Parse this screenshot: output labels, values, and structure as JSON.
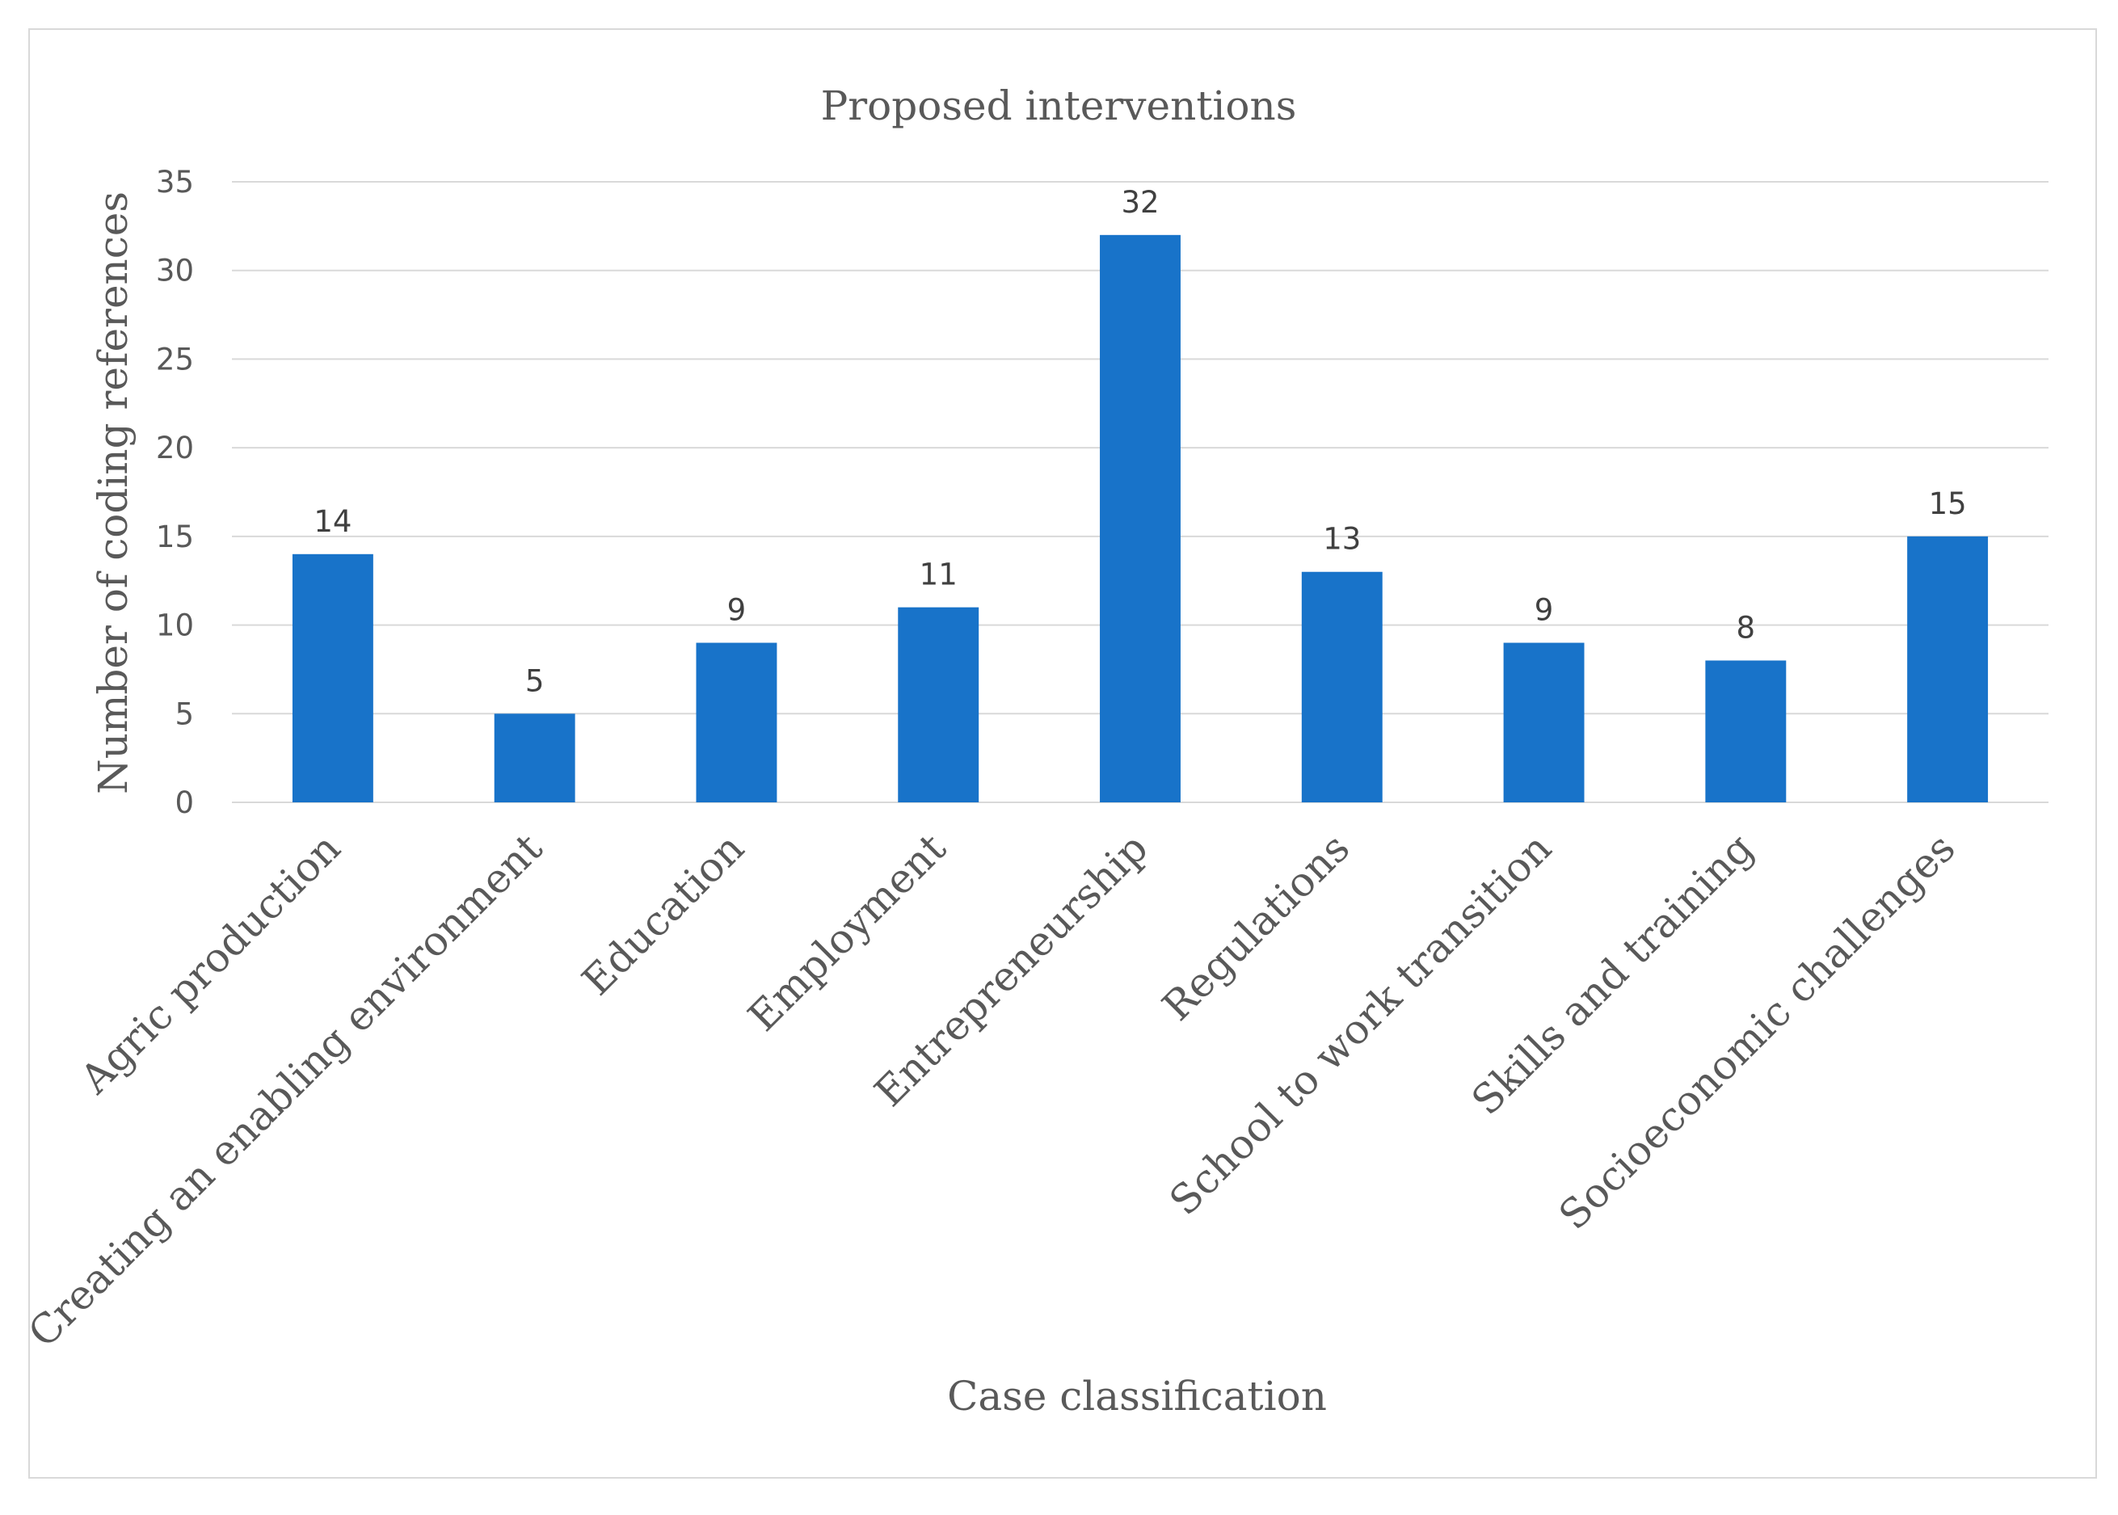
{
  "chart_data": {
    "type": "bar",
    "title": "Proposed interventions",
    "xlabel": "Case classification",
    "ylabel": "Number of coding references",
    "categories": [
      "Agric production",
      "Creating an enabling environment",
      "Education",
      "Employment",
      "Entrepreneurship",
      "Regulations",
      "School to work transition",
      "Skills and training",
      "Socioeconomic challenges"
    ],
    "values": [
      14,
      5,
      9,
      11,
      32,
      13,
      9,
      8,
      15
    ],
    "ylim": [
      0,
      35
    ],
    "yticks": [
      0,
      5,
      10,
      15,
      20,
      25,
      30,
      35
    ],
    "grid": true,
    "data_labels": true,
    "bar_color": "#1873c9"
  }
}
